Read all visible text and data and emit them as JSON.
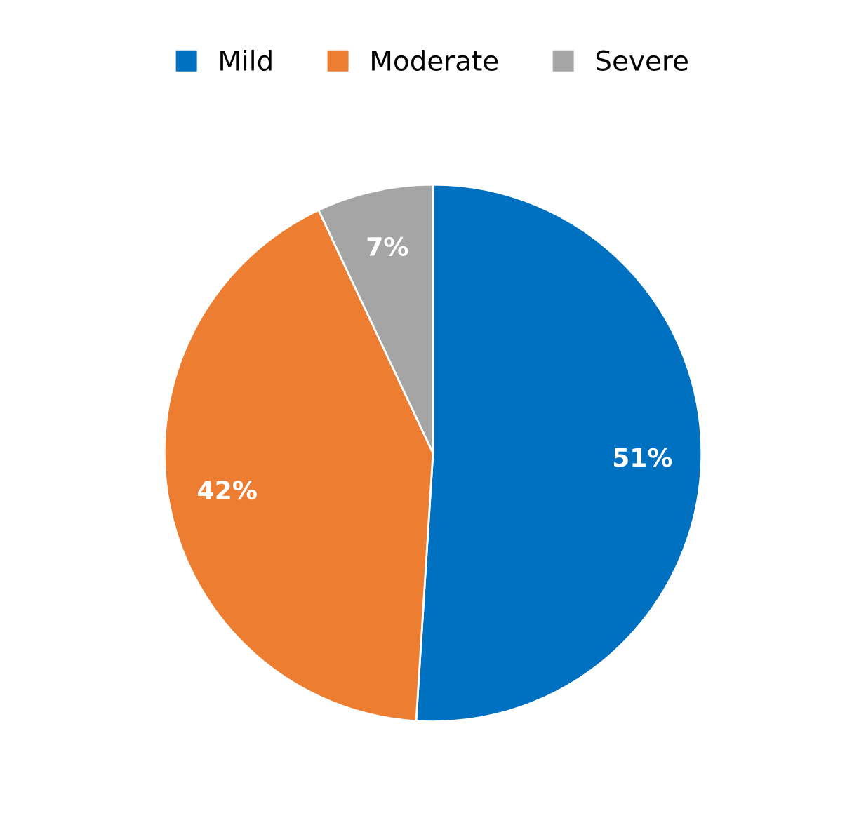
{
  "chart_data": {
    "type": "pie",
    "categories": [
      "Mild",
      "Moderate",
      "Severe"
    ],
    "values": [
      51,
      42,
      7
    ],
    "colors": [
      "#0070c0",
      "#ed7d31",
      "#a5a5a5"
    ],
    "value_labels": [
      "51%",
      "42%",
      "7%"
    ],
    "legend": "top"
  }
}
